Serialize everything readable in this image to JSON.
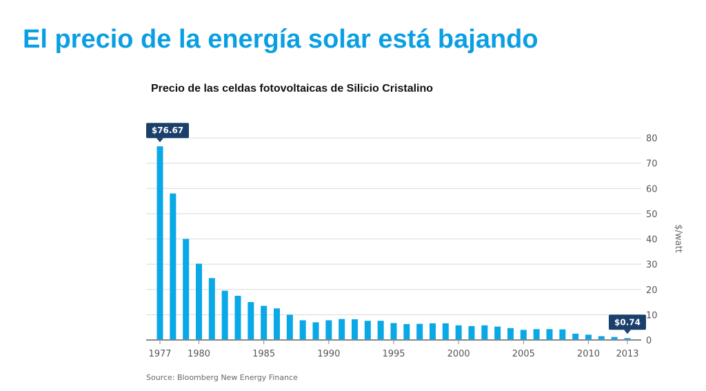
{
  "slide": {
    "title": "El precio de la energía solar está bajando",
    "source": "Source: Bloomberg New Energy Finance"
  },
  "colors": {
    "title": "#0a9fe3",
    "bar": "#0aa8e6",
    "callout": "#1a3f6b",
    "grid": "#d9d9d9",
    "axis": "#888888"
  },
  "chart_data": {
    "type": "bar",
    "title": "Precio de las celdas fotovoltaicas de Silicio Cristalino",
    "xlabel": "",
    "ylabel": "$/watt",
    "ylim": [
      0,
      80
    ],
    "yticks": [
      0,
      10,
      20,
      30,
      40,
      50,
      60,
      70,
      80
    ],
    "y_axis_side": "right",
    "grid": true,
    "categories": [
      1977,
      1978,
      1979,
      1980,
      1981,
      1982,
      1983,
      1984,
      1985,
      1986,
      1987,
      1988,
      1989,
      1990,
      1991,
      1992,
      1993,
      1994,
      1995,
      1996,
      1997,
      1998,
      1999,
      2000,
      2001,
      2002,
      2003,
      2004,
      2005,
      2006,
      2007,
      2008,
      2009,
      2010,
      2011,
      2012,
      2013
    ],
    "xtick_labels": [
      "1977",
      "1980",
      "1985",
      "1990",
      "1995",
      "2000",
      "2005",
      "2010",
      "2013"
    ],
    "values": [
      76.67,
      58.0,
      40.0,
      30.2,
      24.5,
      19.5,
      17.5,
      15.0,
      13.5,
      12.5,
      10.0,
      7.8,
      7.0,
      7.8,
      8.3,
      8.2,
      7.6,
      7.6,
      6.7,
      6.3,
      6.4,
      6.6,
      6.6,
      5.8,
      5.5,
      5.8,
      5.3,
      4.7,
      4.0,
      4.3,
      4.3,
      4.2,
      2.5,
      2.1,
      1.5,
      1.2,
      0.74
    ],
    "annotations": [
      {
        "category": 1977,
        "label": "$76.67"
      },
      {
        "category": 2013,
        "label": "$0.74"
      }
    ]
  }
}
